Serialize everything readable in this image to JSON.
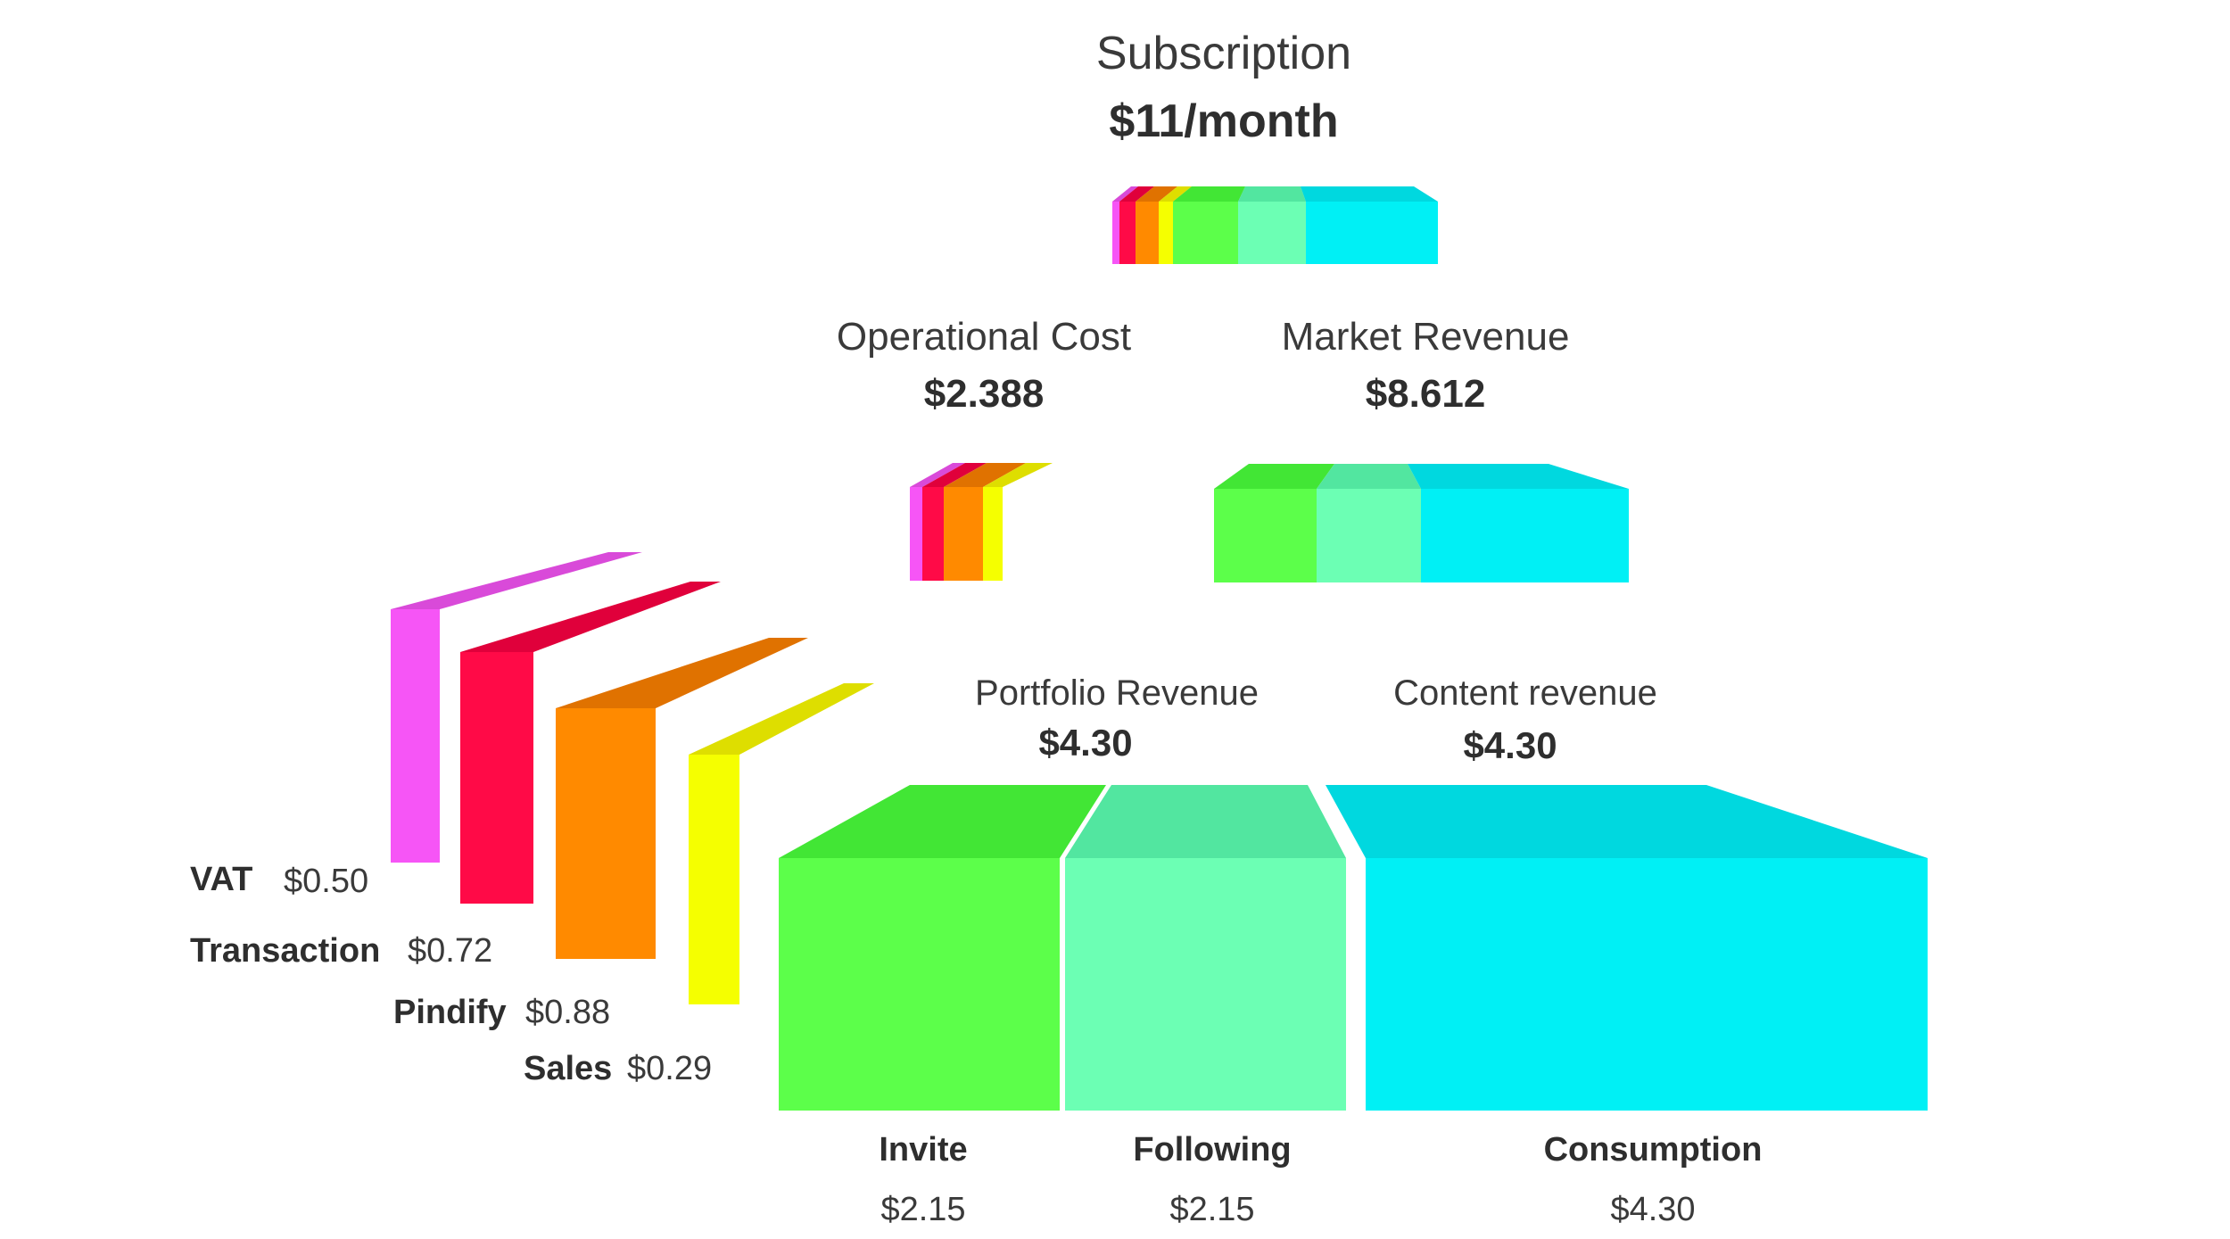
{
  "colors": {
    "vat": "#f655f6",
    "transaction": "#ff0a47",
    "pindify": "#ff8a00",
    "sales": "#f5ff00",
    "invite": "#5cff4a",
    "following": "#6cffb4",
    "consumption": "#00f0f5"
  },
  "subscription": {
    "label": "Subscription",
    "value": "$11/month"
  },
  "operational_cost": {
    "label": "Operational Cost",
    "value": "$2.388"
  },
  "market_revenue": {
    "label": "Market Revenue",
    "value": "$8.612"
  },
  "portfolio_revenue": {
    "label": "Portfolio Revenue",
    "value": "$4.30"
  },
  "content_revenue": {
    "label": "Content revenue",
    "value": "$4.30"
  },
  "costs": [
    {
      "name": "VAT",
      "value": "$0.50"
    },
    {
      "name": "Transaction",
      "value": "$0.72"
    },
    {
      "name": "Pindify",
      "value": "$0.88"
    },
    {
      "name": "Sales",
      "value": "$0.29"
    }
  ],
  "revenues": [
    {
      "name": "Invite",
      "value": "$2.15"
    },
    {
      "name": "Following",
      "value": "$2.15"
    },
    {
      "name": "Consumption",
      "value": "$4.30"
    }
  ]
}
